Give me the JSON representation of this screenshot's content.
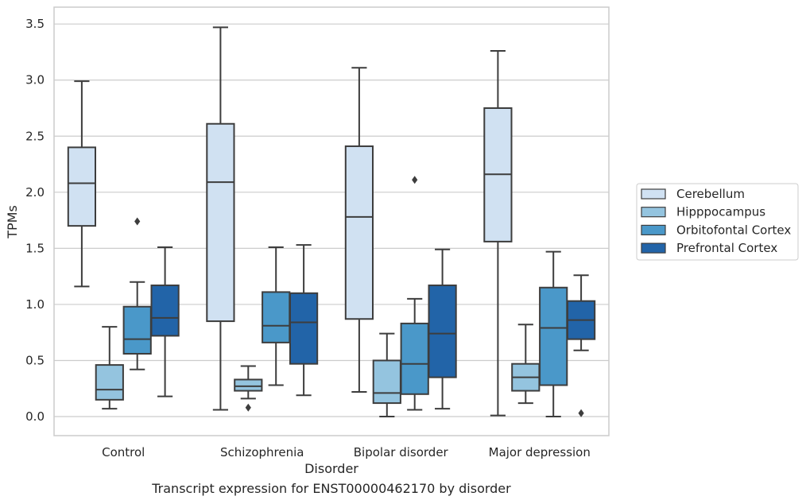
{
  "caption": "Transcript expression for ENST00000462170 by disorder",
  "chart_data": {
    "type": "boxplot",
    "xlabel": "Disorder",
    "ylabel": "TPMs",
    "ylim": [
      -0.17,
      3.65
    ],
    "yticks": [
      "0.0",
      "0.5",
      "1.0",
      "1.5",
      "2.0",
      "2.5",
      "3.0",
      "3.5"
    ],
    "ytick_values": [
      0,
      0.5,
      1.0,
      1.5,
      2.0,
      2.5,
      3.0,
      3.5
    ],
    "grid": "horizontal",
    "legend_position": "right",
    "categories": [
      "Control",
      "Schizophrenia",
      "Bipolar disorder",
      "Major depression"
    ],
    "series": [
      {
        "name": "Cerebellum",
        "color": "#d0e1f2",
        "boxes": [
          {
            "whislo": 1.16,
            "q1": 1.7,
            "med": 2.08,
            "q3": 2.4,
            "whishi": 2.99,
            "fliers": []
          },
          {
            "whislo": 0.06,
            "q1": 0.85,
            "med": 2.09,
            "q3": 2.61,
            "whishi": 3.47,
            "fliers": []
          },
          {
            "whislo": 0.22,
            "q1": 0.87,
            "med": 1.78,
            "q3": 2.41,
            "whishi": 3.11,
            "fliers": []
          },
          {
            "whislo": 0.01,
            "q1": 1.56,
            "med": 2.16,
            "q3": 2.75,
            "whishi": 3.26,
            "fliers": []
          }
        ]
      },
      {
        "name": "Hipppocampus",
        "color": "#94c4df",
        "boxes": [
          {
            "whislo": 0.07,
            "q1": 0.15,
            "med": 0.24,
            "q3": 0.46,
            "whishi": 0.8,
            "fliers": []
          },
          {
            "whislo": 0.16,
            "q1": 0.23,
            "med": 0.27,
            "q3": 0.33,
            "whishi": 0.45,
            "fliers": [
              0.08
            ]
          },
          {
            "whislo": 0.0,
            "q1": 0.12,
            "med": 0.21,
            "q3": 0.5,
            "whishi": 0.74,
            "fliers": []
          },
          {
            "whislo": 0.12,
            "q1": 0.23,
            "med": 0.35,
            "q3": 0.47,
            "whishi": 0.82,
            "fliers": []
          }
        ]
      },
      {
        "name": "Orbitofontal Cortex",
        "color": "#4a98c9",
        "boxes": [
          {
            "whislo": 0.42,
            "q1": 0.56,
            "med": 0.69,
            "q3": 0.98,
            "whishi": 1.2,
            "fliers": [
              1.74
            ]
          },
          {
            "whislo": 0.28,
            "q1": 0.66,
            "med": 0.81,
            "q3": 1.11,
            "whishi": 1.51,
            "fliers": []
          },
          {
            "whislo": 0.06,
            "q1": 0.2,
            "med": 0.47,
            "q3": 0.83,
            "whishi": 1.05,
            "fliers": [
              2.11
            ]
          },
          {
            "whislo": 0.0,
            "q1": 0.28,
            "med": 0.79,
            "q3": 1.15,
            "whishi": 1.47,
            "fliers": []
          }
        ]
      },
      {
        "name": "Prefrontal Cortex",
        "color": "#2264a8",
        "boxes": [
          {
            "whislo": 0.18,
            "q1": 0.72,
            "med": 0.88,
            "q3": 1.17,
            "whishi": 1.51,
            "fliers": []
          },
          {
            "whislo": 0.19,
            "q1": 0.47,
            "med": 0.84,
            "q3": 1.1,
            "whishi": 1.53,
            "fliers": []
          },
          {
            "whislo": 0.07,
            "q1": 0.35,
            "med": 0.74,
            "q3": 1.17,
            "whishi": 1.49,
            "fliers": []
          },
          {
            "whislo": 0.59,
            "q1": 0.69,
            "med": 0.86,
            "q3": 1.03,
            "whishi": 1.26,
            "fliers": [
              0.03
            ]
          }
        ]
      }
    ]
  }
}
